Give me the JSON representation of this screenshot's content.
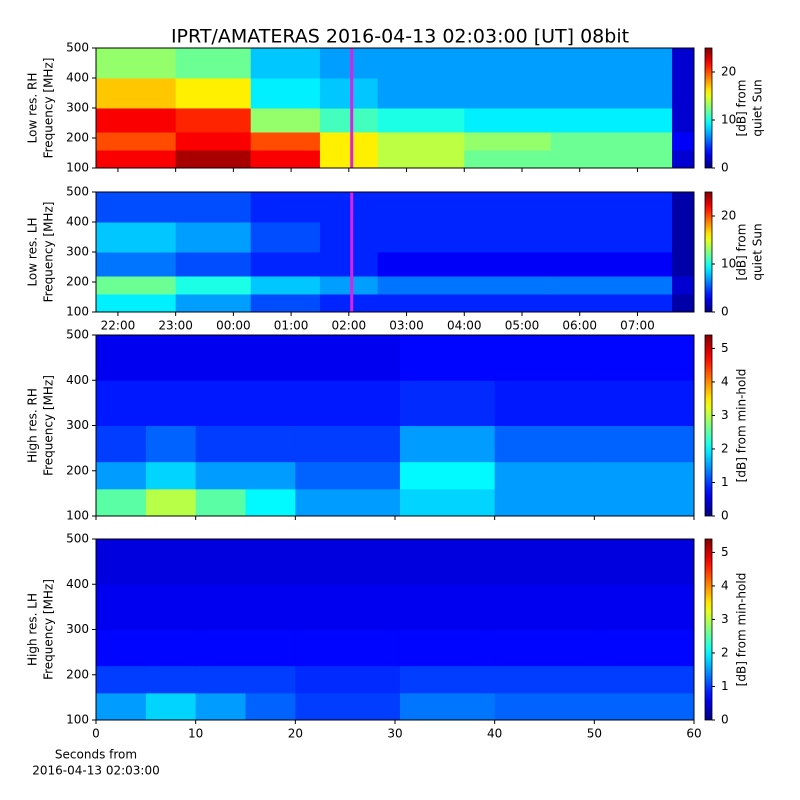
{
  "title": "IPRT/AMATERAS 2016-04-13 02:03:00 [UT]   08bit",
  "chart_data": [
    {
      "type": "heatmap",
      "colormap": "jet",
      "ylabel": [
        "Low res. RH",
        "Frequency [MHz]"
      ],
      "xlim": [
        21.62,
        31.98
      ],
      "xticks": [
        22,
        23,
        24,
        25,
        26,
        27,
        28,
        29,
        30,
        31
      ],
      "ylim": [
        100,
        500
      ],
      "yticks": [
        100,
        200,
        300,
        400,
        500
      ],
      "xbins": [
        21.62,
        23,
        24.3,
        25.5,
        26.5,
        28,
        29.5,
        31.6,
        31.98
      ],
      "ybins": [
        100,
        160,
        220,
        300,
        400,
        500
      ],
      "z": [
        [
          22,
          24,
          22,
          16,
          14,
          12,
          12,
          2
        ],
        [
          20,
          22,
          20,
          16,
          14,
          13,
          12,
          3
        ],
        [
          22,
          21,
          13,
          11,
          10,
          9,
          9,
          2
        ],
        [
          17,
          16,
          9,
          8,
          7,
          7,
          7,
          2
        ],
        [
          13,
          12,
          8,
          7,
          7,
          7,
          7,
          2
        ]
      ],
      "marker_x": 26.05,
      "marker_color": "#e020e0",
      "clim": [
        0,
        25
      ],
      "cticks": [
        0,
        10,
        20
      ],
      "clabel": [
        "[dB] from",
        "quiet Sun"
      ]
    },
    {
      "type": "heatmap",
      "colormap": "jet",
      "ylabel": [
        "Low res. LH",
        "Frequency [MHz]"
      ],
      "xlim": [
        21.62,
        31.98
      ],
      "xticks": [
        {
          "value": 22,
          "label": "22:00"
        },
        {
          "value": 23,
          "label": "23:00"
        },
        {
          "value": 24,
          "label": "00:00"
        },
        {
          "value": 25,
          "label": "01:00"
        },
        {
          "value": 26,
          "label": "02:00"
        },
        {
          "value": 27,
          "label": "03:00"
        },
        {
          "value": 28,
          "label": "04:00"
        },
        {
          "value": 29,
          "label": "05:00"
        },
        {
          "value": 30,
          "label": "06:00"
        },
        {
          "value": 31,
          "label": "07:00"
        }
      ],
      "ylim": [
        100,
        500
      ],
      "yticks": [
        100,
        200,
        300,
        400,
        500
      ],
      "xbins": [
        21.62,
        23,
        24.3,
        25.5,
        26.5,
        28,
        29.5,
        31.6,
        31.98
      ],
      "ybins": [
        100,
        160,
        220,
        300,
        400,
        500
      ],
      "z": [
        [
          9,
          7,
          5,
          4,
          4,
          4,
          4,
          1
        ],
        [
          12,
          10,
          8,
          7,
          6,
          6,
          6,
          2
        ],
        [
          6,
          5,
          4,
          4,
          3,
          3,
          3,
          1
        ],
        [
          8,
          7,
          5,
          4,
          4,
          4,
          4,
          1
        ],
        [
          5,
          5,
          4,
          4,
          4,
          4,
          4,
          1
        ]
      ],
      "marker_x": 26.05,
      "marker_color": "#e020e0",
      "clim": [
        0,
        25
      ],
      "cticks": [
        0,
        10,
        20
      ],
      "clabel": [
        "[dB] from",
        "quiet Sun"
      ]
    },
    {
      "type": "heatmap",
      "colormap": "jet",
      "ylabel": [
        "High res. RH",
        "Frequency [MHz]"
      ],
      "xlim": [
        0,
        60
      ],
      "xticks": [
        0,
        10,
        20,
        30,
        40,
        50,
        60
      ],
      "ylim": [
        100,
        500
      ],
      "yticks": [
        100,
        200,
        300,
        400,
        500
      ],
      "xbins": [
        0,
        5,
        10,
        15,
        20,
        30.5,
        40,
        50,
        60
      ],
      "ybins": [
        100,
        160,
        220,
        300,
        400,
        500
      ],
      "z": [
        [
          2.5,
          3,
          2.5,
          2,
          1.5,
          1.8,
          1.5,
          1.5
        ],
        [
          1.5,
          1.8,
          1.5,
          1.5,
          1.2,
          2,
          1.5,
          1.5
        ],
        [
          1,
          1.2,
          1,
          1,
          1,
          1.5,
          1.2,
          1.2
        ],
        [
          0.8,
          0.8,
          0.8,
          0.8,
          0.8,
          0.9,
          0.8,
          0.8
        ],
        [
          0.6,
          0.6,
          0.6,
          0.6,
          0.6,
          0.7,
          0.7,
          0.7
        ]
      ],
      "clim": [
        0,
        5.4
      ],
      "cticks": [
        0,
        1,
        2,
        3,
        4,
        5
      ],
      "clabel": [
        "[dB] from min-hold"
      ]
    },
    {
      "type": "heatmap",
      "colormap": "jet",
      "ylabel": [
        "High res. LH",
        "Frequency [MHz]"
      ],
      "xlim": [
        0,
        60
      ],
      "xticks": [
        0,
        10,
        20,
        30,
        40,
        50,
        60
      ],
      "xlabel": [
        "Seconds from",
        "2016-04-13 02:03:00"
      ],
      "ylim": [
        100,
        500
      ],
      "yticks": [
        100,
        200,
        300,
        400,
        500
      ],
      "xbins": [
        0,
        5,
        10,
        15,
        20,
        30.5,
        40,
        50,
        60
      ],
      "ybins": [
        100,
        160,
        220,
        300,
        400,
        500
      ],
      "z": [
        [
          1.5,
          1.8,
          1.5,
          1.2,
          1,
          1.3,
          1.2,
          1.2
        ],
        [
          1,
          1,
          1,
          1,
          0.9,
          1,
          1,
          1
        ],
        [
          0.7,
          0.7,
          0.7,
          0.7,
          0.7,
          0.7,
          0.7,
          0.7
        ],
        [
          0.6,
          0.6,
          0.6,
          0.6,
          0.6,
          0.6,
          0.6,
          0.6
        ],
        [
          0.5,
          0.5,
          0.5,
          0.5,
          0.5,
          0.5,
          0.5,
          0.5
        ]
      ],
      "clim": [
        0,
        5.4
      ],
      "cticks": [
        0,
        1,
        2,
        3,
        4,
        5
      ],
      "clabel": [
        "[dB] from min-hold"
      ]
    }
  ]
}
